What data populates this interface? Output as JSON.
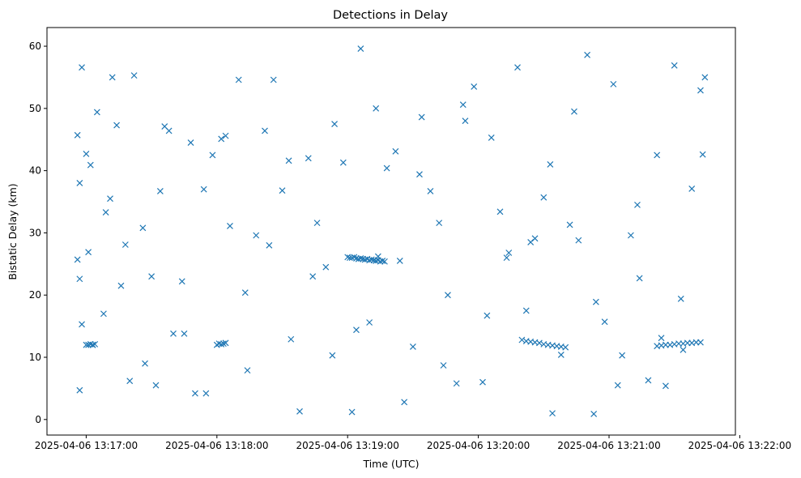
{
  "chart_data": {
    "type": "scatter",
    "title": "Detections in Delay",
    "xlabel": "Time (UTC)",
    "ylabel": "Bistatic Delay (km)",
    "x_unit": "UTC",
    "xlim": [
      "2025-04-06 13:16:42",
      "2025-04-06 13:21:58"
    ],
    "ylim": [
      -2.5,
      63
    ],
    "x_ticks": [
      "2025-04-06 13:17:00",
      "2025-04-06 13:18:00",
      "2025-04-06 13:19:00",
      "2025-04-06 13:20:00",
      "2025-04-06 13:21:00",
      "2025-04-06 13:22:00"
    ],
    "y_ticks": [
      0,
      10,
      20,
      30,
      40,
      50,
      60
    ],
    "marker": "x",
    "color": "#1f77b4",
    "grid": false,
    "legend": "none",
    "series": [
      {
        "x": [
          "2025-04-06 13:16:56",
          "2025-04-06 13:16:56",
          "2025-04-06 13:16:57",
          "2025-04-06 13:16:57",
          "2025-04-06 13:16:58",
          "2025-04-06 13:16:58",
          "2025-04-06 13:17:00",
          "2025-04-06 13:17:01",
          "2025-04-06 13:17:02",
          "2025-04-06 13:17:05",
          "2025-04-06 13:17:08",
          "2025-04-06 13:17:09",
          "2025-04-06 13:17:12",
          "2025-04-06 13:17:14",
          "2025-04-06 13:17:16",
          "2025-04-06 13:17:20",
          "2025-04-06 13:17:22",
          "2025-04-06 13:17:26",
          "2025-04-06 13:17:30",
          "2025-04-06 13:17:32",
          "2025-04-06 13:17:34",
          "2025-04-06 13:17:38",
          "2025-04-06 13:17:40",
          "2025-04-06 13:17:44",
          "2025-04-06 13:17:48",
          "2025-04-06 13:17:50",
          "2025-04-06 13:17:54",
          "2025-04-06 13:17:58",
          "2025-04-06 13:18:02",
          "2025-04-06 13:18:06",
          "2025-04-06 13:18:10",
          "2025-04-06 13:18:14",
          "2025-04-06 13:18:18",
          "2025-04-06 13:18:22",
          "2025-04-06 13:18:26",
          "2025-04-06 13:18:30",
          "2025-04-06 13:18:34",
          "2025-04-06 13:18:38",
          "2025-04-06 13:18:42",
          "2025-04-06 13:18:46",
          "2025-04-06 13:18:50",
          "2025-04-06 13:18:54",
          "2025-04-06 13:18:58",
          "2025-04-06 13:19:02",
          "2025-04-06 13:19:06",
          "2025-04-06 13:19:10",
          "2025-04-06 13:19:14",
          "2025-04-06 13:19:18",
          "2025-04-06 13:19:22",
          "2025-04-06 13:19:26",
          "2025-04-06 13:19:30",
          "2025-04-06 13:19:34",
          "2025-04-06 13:19:38",
          "2025-04-06 13:19:42",
          "2025-04-06 13:19:46",
          "2025-04-06 13:19:50",
          "2025-04-06 13:19:54",
          "2025-04-06 13:19:58",
          "2025-04-06 13:20:02",
          "2025-04-06 13:20:06",
          "2025-04-06 13:20:10",
          "2025-04-06 13:20:14",
          "2025-04-06 13:20:18",
          "2025-04-06 13:20:22",
          "2025-04-06 13:20:26",
          "2025-04-06 13:20:30",
          "2025-04-06 13:20:34",
          "2025-04-06 13:20:38",
          "2025-04-06 13:20:42",
          "2025-04-06 13:20:46",
          "2025-04-06 13:20:50",
          "2025-04-06 13:20:54",
          "2025-04-06 13:20:58",
          "2025-04-06 13:21:02",
          "2025-04-06 13:21:06",
          "2025-04-06 13:21:10",
          "2025-04-06 13:21:14",
          "2025-04-06 13:21:18",
          "2025-04-06 13:21:22",
          "2025-04-06 13:21:26",
          "2025-04-06 13:21:30",
          "2025-04-06 13:21:34",
          "2025-04-06 13:21:38",
          "2025-04-06 13:21:42",
          "2025-04-06 13:21:44",
          "2025-04-06 13:16:57",
          "2025-04-06 13:17:03",
          "2025-04-06 13:17:11",
          "2025-04-06 13:17:18",
          "2025-04-06 13:17:27",
          "2025-04-06 13:17:36",
          "2025-04-06 13:17:45",
          "2025-04-06 13:17:55",
          "2025-04-06 13:18:04",
          "2025-04-06 13:18:13",
          "2025-04-06 13:18:24",
          "2025-04-06 13:18:33",
          "2025-04-06 13:18:44",
          "2025-04-06 13:18:53",
          "2025-04-06 13:19:04",
          "2025-04-06 13:19:13",
          "2025-04-06 13:19:24",
          "2025-04-06 13:19:33",
          "2025-04-06 13:19:44",
          "2025-04-06 13:19:53",
          "2025-04-06 13:20:04",
          "2025-04-06 13:20:13",
          "2025-04-06 13:20:24",
          "2025-04-06 13:20:33",
          "2025-04-06 13:20:44",
          "2025-04-06 13:20:53",
          "2025-04-06 13:21:04",
          "2025-04-06 13:21:13",
          "2025-04-06 13:21:24",
          "2025-04-06 13:21:33",
          "2025-04-06 13:21:43",
          "2025-04-06 13:17:00",
          "2025-04-06 13:17:01",
          "2025-04-06 13:17:02",
          "2025-04-06 13:17:03",
          "2025-04-06 13:17:04",
          "2025-04-06 13:18:00",
          "2025-04-06 13:18:01",
          "2025-04-06 13:18:02",
          "2025-04-06 13:18:03",
          "2025-04-06 13:18:04",
          "2025-04-06 13:19:00",
          "2025-04-06 13:19:01",
          "2025-04-06 13:19:02",
          "2025-04-06 13:19:03",
          "2025-04-06 13:19:04",
          "2025-04-06 13:19:05",
          "2025-04-06 13:19:06",
          "2025-04-06 13:19:07",
          "2025-04-06 13:19:08",
          "2025-04-06 13:19:09",
          "2025-04-06 13:19:10",
          "2025-04-06 13:19:11",
          "2025-04-06 13:19:12",
          "2025-04-06 13:19:13",
          "2025-04-06 13:19:14",
          "2025-04-06 13:19:15",
          "2025-04-06 13:19:16",
          "2025-04-06 13:19:17",
          "2025-04-06 13:20:20",
          "2025-04-06 13:20:22",
          "2025-04-06 13:20:24",
          "2025-04-06 13:20:26",
          "2025-04-06 13:20:28",
          "2025-04-06 13:20:30",
          "2025-04-06 13:20:32",
          "2025-04-06 13:20:34",
          "2025-04-06 13:20:36",
          "2025-04-06 13:20:38",
          "2025-04-06 13:20:40",
          "2025-04-06 13:21:22",
          "2025-04-06 13:21:24",
          "2025-04-06 13:21:26",
          "2025-04-06 13:21:28",
          "2025-04-06 13:21:30",
          "2025-04-06 13:21:32",
          "2025-04-06 13:21:34",
          "2025-04-06 13:21:36",
          "2025-04-06 13:21:38",
          "2025-04-06 13:21:40",
          "2025-04-06 13:21:42"
        ],
        "y": [
          45.7,
          25.7,
          22.6,
          4.7,
          56.6,
          15.3,
          42.7,
          26.9,
          40.9,
          49.4,
          17.0,
          33.3,
          55.0,
          47.3,
          21.5,
          6.2,
          55.3,
          30.8,
          23.0,
          5.5,
          36.7,
          46.4,
          13.8,
          22.2,
          44.5,
          4.2,
          37.0,
          42.5,
          45.1,
          31.1,
          54.6,
          7.9,
          29.6,
          46.4,
          54.6,
          36.8,
          12.9,
          1.3,
          42.0,
          31.6,
          24.5,
          47.5,
          41.3,
          1.2,
          59.6,
          15.6,
          26.2,
          40.4,
          43.1,
          2.8,
          11.7,
          48.6,
          36.7,
          31.6,
          20.0,
          5.8,
          48.0,
          53.5,
          6.0,
          45.3,
          33.4,
          26.8,
          56.6,
          17.5,
          29.1,
          35.7,
          1.0,
          10.4,
          31.3,
          28.8,
          58.6,
          18.9,
          15.7,
          53.9,
          10.3,
          29.6,
          22.7,
          6.3,
          42.5,
          5.4,
          56.9,
          11.2,
          37.1,
          52.9,
          55.0,
          38.0,
          12.0,
          35.5,
          28.1,
          9.0,
          47.1,
          13.8,
          4.2,
          45.6,
          20.4,
          28.0,
          41.6,
          23.0,
          10.3,
          14.4,
          50.0,
          25.5,
          39.4,
          8.7,
          50.6,
          16.7,
          26.0,
          28.5,
          41.0,
          49.5,
          0.9,
          5.5,
          34.5,
          13.1,
          19.4,
          42.6,
          12.0,
          12.0,
          12.1,
          12.0,
          12.1,
          12.0,
          12.2,
          12.1,
          12.2,
          12.3,
          26.1,
          26.0,
          26.0,
          26.1,
          25.9,
          25.8,
          25.9,
          25.8,
          25.7,
          25.8,
          25.6,
          25.7,
          25.6,
          25.5,
          25.6,
          25.4,
          25.5,
          25.4,
          12.8,
          12.6,
          12.5,
          12.4,
          12.3,
          12.1,
          12.0,
          11.9,
          11.8,
          11.7,
          11.6,
          11.8,
          11.9,
          12.0,
          12.0,
          12.1,
          12.2,
          12.2,
          12.3,
          12.3,
          12.4,
          12.4
        ]
      }
    ]
  }
}
